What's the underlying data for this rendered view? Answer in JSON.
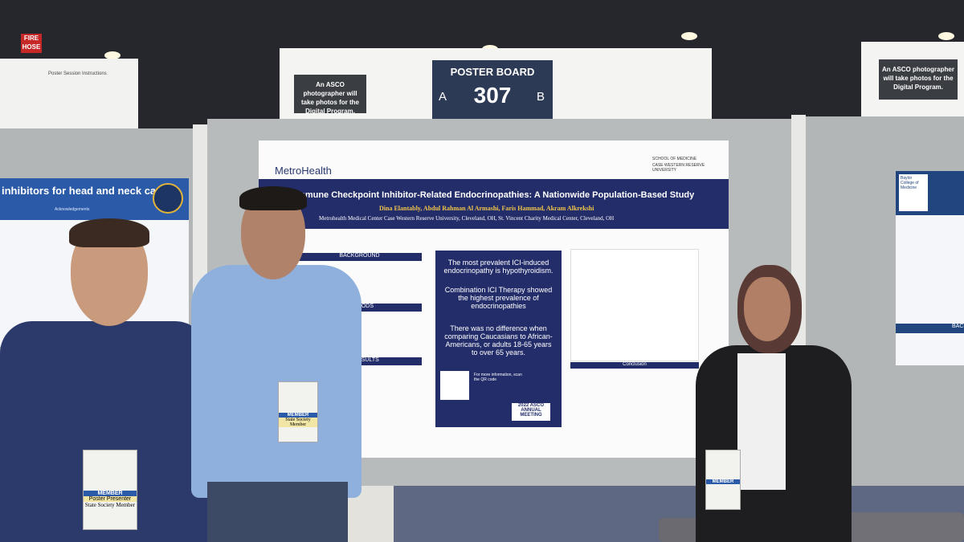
{
  "venue": {
    "fire_sign": "FIRE HOSE",
    "left_sign": "Poster Session Instructions",
    "photo_notice_center": "An ASCO photographer will take photos for the Digital Program.",
    "photo_notice_right": "An ASCO photographer will take photos for the Digital Program.",
    "board_label": "POSTER BOARD",
    "board_side_a": "A",
    "board_number": "307",
    "board_side_b": "B"
  },
  "left_poster": {
    "title": "inhibitors for head and neck cancer",
    "section": "Acknowledgements"
  },
  "poster": {
    "institution_left": "MetroHealth",
    "institution_right_top": "SCHOOL OF MEDICINE",
    "institution_right": "CASE WESTERN RESERVE UNIVERSITY",
    "title": "Immune Checkpoint Inhibitor-Related Endocrinopathies: A Nationwide Population-Based Study",
    "authors": "Dina Elantably, Abdul Rahman Al Armashi, Faris Hammad, Akram Alkrekshi",
    "affiliation": "Metrohealth Medical Center Case Western Reserve University, Cleveland, OH, St. Vincent Charity Medical Center, Cleveland, OH",
    "sections": [
      "BACKGROUND",
      "METHODS",
      "RESULTS"
    ],
    "findings": [
      "The most prevalent ICI-induced endocrinopathy is hypothyroidism.",
      "Combination ICI Therapy showed the highest prevalence of endocrinopathies",
      "There was no difference when comparing Caucasians to African-Americans, or adults 18-65 years to over 65 years."
    ],
    "qr_note": "For more information, scan the QR code",
    "meeting": "2022 ASCO ANNUAL MEETING",
    "conclusion_heading": "Conclusion"
  },
  "right_poster": {
    "institution": "Baylor College of Medicine",
    "section": "BACKGROUND"
  },
  "badges": {
    "member": "MEMBER",
    "presenter": "Poster Presenter",
    "state": "State Society Member"
  }
}
